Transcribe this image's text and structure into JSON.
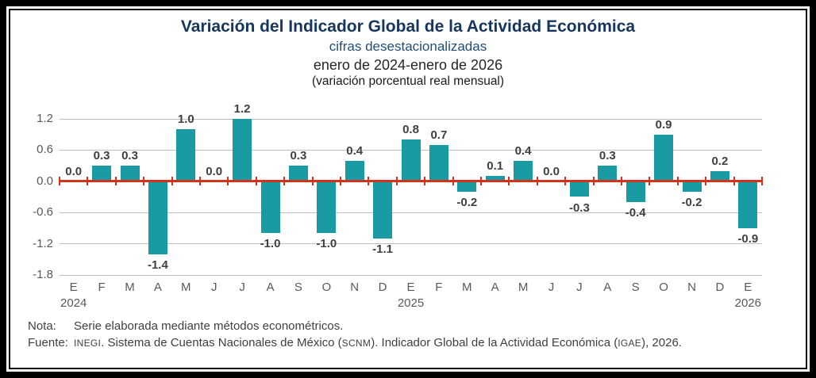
{
  "chart_data": {
    "type": "bar",
    "title": "Variación del Indicador Global de la Actividad Económica",
    "subtitle": "cifras desestacionalizadas",
    "period": "enero de 2024-enero de 2026",
    "unit": "(variación porcentual real mensual)",
    "categories": [
      "E",
      "F",
      "M",
      "A",
      "M",
      "J",
      "J",
      "A",
      "S",
      "O",
      "N",
      "D",
      "E",
      "F",
      "M",
      "A",
      "M",
      "J",
      "J",
      "A",
      "S",
      "O",
      "N",
      "D",
      "E"
    ],
    "values": [
      0.0,
      0.3,
      0.3,
      -1.4,
      1.0,
      0.0,
      1.2,
      -1.0,
      0.3,
      -1.0,
      0.4,
      -1.1,
      0.8,
      0.7,
      -0.2,
      0.1,
      0.4,
      0.0,
      -0.3,
      0.3,
      -0.4,
      0.9,
      -0.2,
      0.2,
      -0.9
    ],
    "value_labels": [
      "0.0",
      "0.3",
      "0.3",
      "-1.4",
      "1.0",
      "0.0",
      "1.2",
      "-1.0",
      "0.3",
      "-1.0",
      "0.4",
      "-1.1",
      "0.8",
      "0.7",
      "-0.2",
      "0.1",
      "0.4",
      "0.0",
      "-0.3",
      "0.3",
      "-0.4",
      "0.9",
      "-0.2",
      "0.2",
      "-0.9"
    ],
    "year_labels": [
      {
        "index": 0,
        "label": "2024"
      },
      {
        "index": 12,
        "label": "2025"
      },
      {
        "index": 24,
        "label": "2026"
      }
    ],
    "y_ticks": [
      1.2,
      0.6,
      0.0,
      -0.6,
      -1.2,
      -1.8
    ],
    "y_tick_labels": [
      "1.2",
      "0.6",
      "0.0",
      "-0.6",
      "-1.2",
      "-1.8"
    ],
    "ylim": [
      -1.8,
      1.2
    ],
    "grid": true,
    "legend": "none",
    "colors": {
      "bar": "#1a9ba3",
      "zero_line": "#d2331a",
      "grid": "#bfbfbf",
      "axis_labels": "#595959",
      "value_labels": "#404040",
      "title": "#17365d"
    }
  },
  "notes": {
    "nota_label": "Nota:",
    "nota_text": "Serie elaborada mediante métodos econométricos.",
    "fuente_label": "Fuente:",
    "fuente_parts": [
      {
        "text": "INEGI",
        "small": true
      },
      {
        "text": ". Sistema de Cuentas Nacionales de México (",
        "small": false
      },
      {
        "text": "SCNM",
        "small": true
      },
      {
        "text": "). Indicador Global de la Actividad Económica (",
        "small": false
      },
      {
        "text": "IGAE",
        "small": true
      },
      {
        "text": "), 2026.",
        "small": false
      }
    ]
  }
}
